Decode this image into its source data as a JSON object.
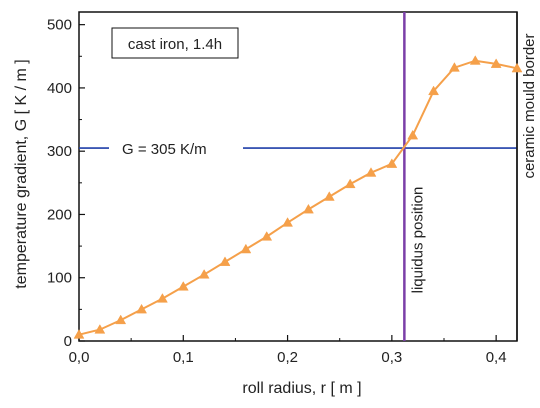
{
  "chart_data": {
    "type": "line",
    "xlabel": "roll radius, r  [ m ]",
    "ylabel": "temperature gradient, G  [ K / m ]",
    "xlim": [
      0.0,
      0.42
    ],
    "ylim": [
      0,
      520
    ],
    "x_ticks": [
      0.0,
      0.1,
      0.2,
      0.3,
      0.4
    ],
    "x_tick_labels": [
      "0,0",
      "0,1",
      "0,2",
      "0,3",
      "0,4"
    ],
    "y_ticks": [
      0,
      100,
      200,
      300,
      400,
      500
    ],
    "y_tick_labels": [
      "0",
      "100",
      "200",
      "300",
      "400",
      "500"
    ],
    "grid": false,
    "series": [
      {
        "color": "#f5a04a",
        "marker": "triangle",
        "x": [
          0.0,
          0.02,
          0.04,
          0.06,
          0.08,
          0.1,
          0.12,
          0.14,
          0.16,
          0.18,
          0.2,
          0.22,
          0.24,
          0.26,
          0.28,
          0.3,
          0.32,
          0.34,
          0.36,
          0.38,
          0.4,
          0.42
        ],
        "y": [
          10,
          18,
          33,
          50,
          67,
          86,
          105,
          125,
          145,
          165,
          187,
          208,
          228,
          248,
          266,
          280,
          325,
          395,
          432,
          443,
          438,
          431
        ]
      }
    ],
    "reference_lines": [
      {
        "orientation": "horizontal",
        "value": 305,
        "color": "#1f3ea8",
        "label": "G = 305 K/m"
      },
      {
        "orientation": "vertical",
        "value": 0.312,
        "color": "#7b3fa8",
        "label": "liquidus position"
      },
      {
        "orientation": "vertical",
        "value": 0.42,
        "color": "#111111",
        "label": "ceramic mould border"
      }
    ],
    "annotation_box": "cast iron, 1.4h"
  }
}
